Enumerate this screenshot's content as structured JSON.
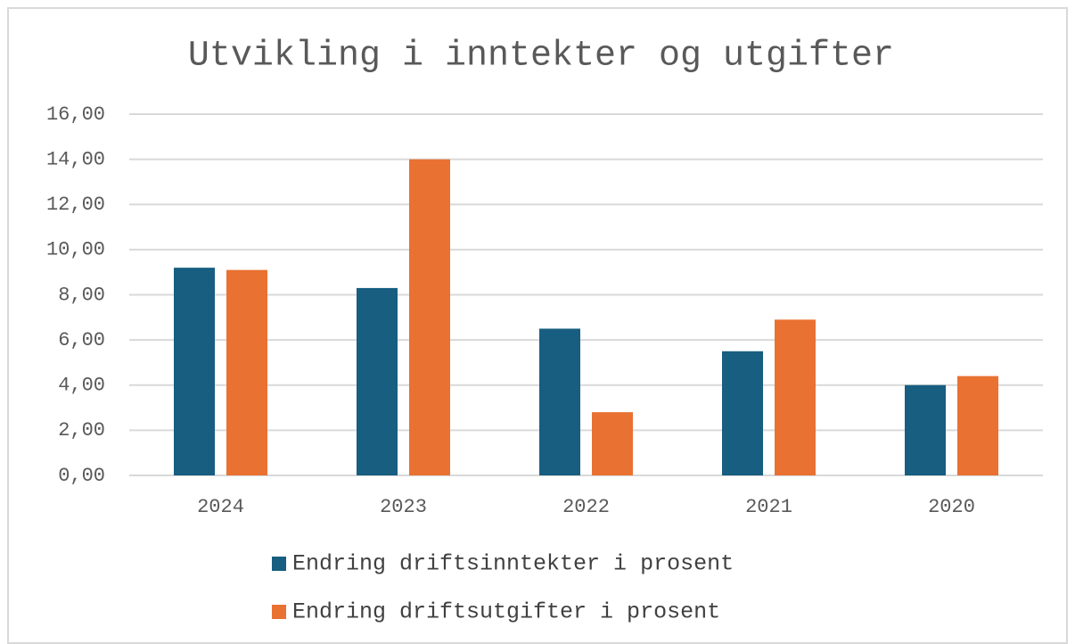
{
  "chart_data": {
    "type": "bar",
    "title": "Utvikling i inntekter og utgifter",
    "categories": [
      "2024",
      "2023",
      "2022",
      "2021",
      "2020"
    ],
    "series": [
      {
        "name": "Endring driftsinntekter i prosent",
        "color": "#175e80",
        "values": [
          9.2,
          8.3,
          6.5,
          5.5,
          4.0
        ]
      },
      {
        "name": "Endring driftsutgifter i prosent",
        "color": "#e97132",
        "values": [
          9.1,
          14.0,
          2.8,
          6.9,
          4.4
        ]
      }
    ],
    "ylim": [
      0,
      16
    ],
    "yticks": [
      {
        "value": 0,
        "label": "0,00"
      },
      {
        "value": 2,
        "label": "2,00"
      },
      {
        "value": 4,
        "label": "4,00"
      },
      {
        "value": 6,
        "label": "6,00"
      },
      {
        "value": 8,
        "label": "8,00"
      },
      {
        "value": 10,
        "label": "10,00"
      },
      {
        "value": 12,
        "label": "12,00"
      },
      {
        "value": 14,
        "label": "14,00"
      },
      {
        "value": 16,
        "label": "16,00"
      }
    ],
    "grid": true,
    "legend": "bottom"
  }
}
